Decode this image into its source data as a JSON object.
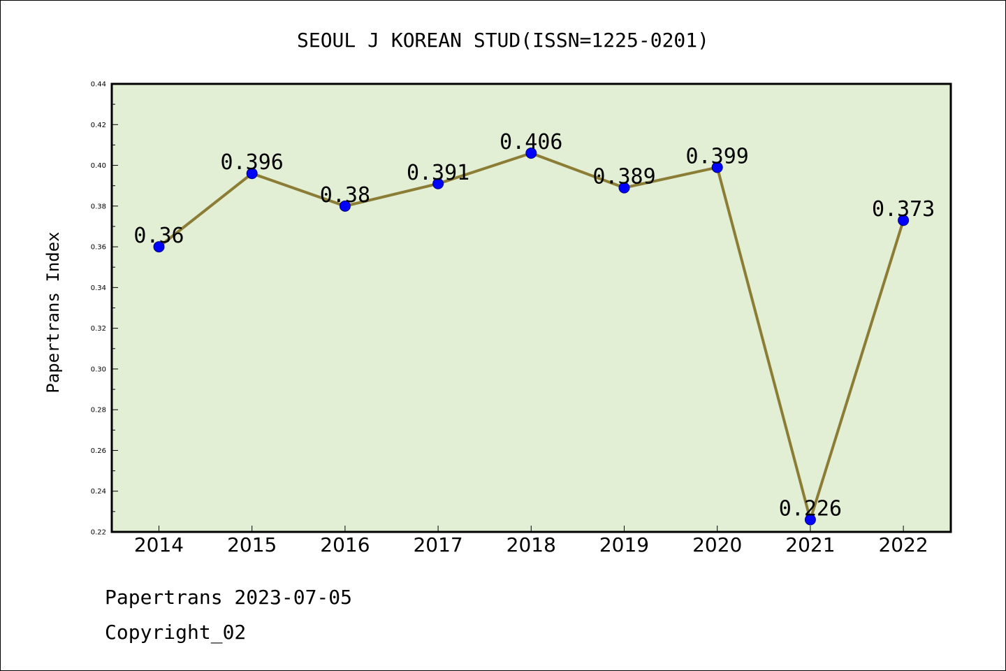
{
  "chart_data": {
    "type": "line",
    "title": "SEOUL J KOREAN STUD(ISSN=1225-0201)",
    "xlabel": "",
    "ylabel": "Papertrans Index",
    "categories": [
      "2014",
      "2015",
      "2016",
      "2017",
      "2018",
      "2019",
      "2020",
      "2021",
      "2022"
    ],
    "series": [
      {
        "values": [
          0.36,
          0.396,
          0.38,
          0.391,
          0.406,
          0.389,
          0.399,
          0.226,
          0.373
        ],
        "labels": [
          "0.36",
          "0.396",
          "0.38",
          "0.391",
          "0.406",
          "0.389",
          "0.399",
          "0.226",
          "0.373"
        ]
      }
    ],
    "ylim": [
      0.22,
      0.44
    ],
    "yticks": [
      "0.22",
      "0.24",
      "0.26",
      "0.28",
      "0.30",
      "0.32",
      "0.34",
      "0.36",
      "0.38",
      "0.40",
      "0.42",
      "0.44"
    ],
    "grid": false,
    "legend": "none",
    "colors": {
      "plot_background": "#e2efd4",
      "line": "#8b7d35",
      "marker": "#0000ff"
    }
  },
  "footer": {
    "line1": "Papertrans 2023-07-05",
    "line2": "Copyright_02"
  }
}
